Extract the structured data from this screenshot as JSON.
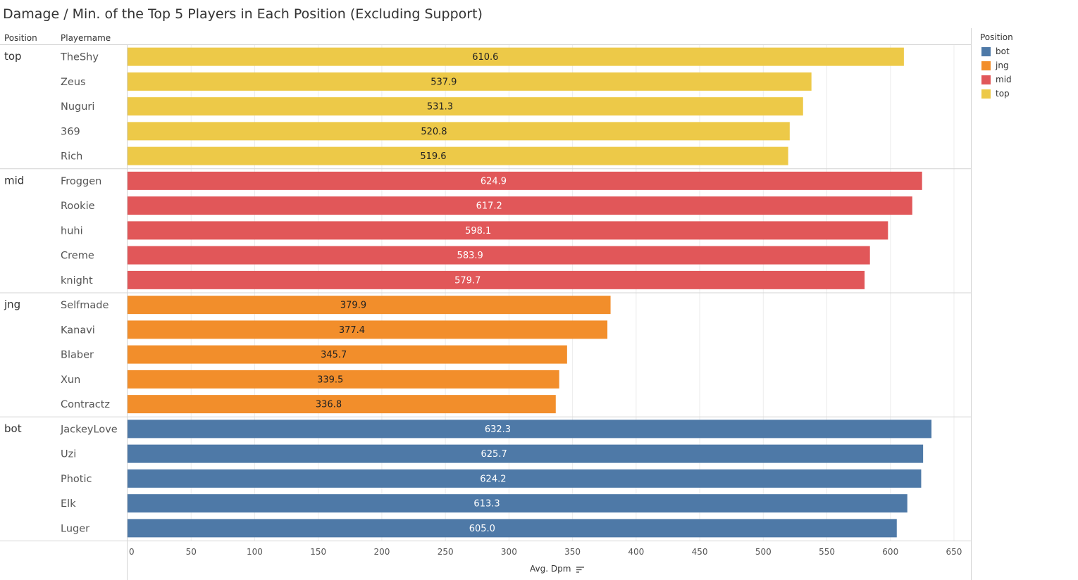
{
  "chart_data": {
    "type": "bar",
    "orientation": "horizontal",
    "title": "Damage / Min. of the Top 5 Players in Each Position (Excluding Support)",
    "row_headers": [
      "Position",
      "Playername"
    ],
    "xlabel": "Avg. Dpm",
    "xlim": [
      0,
      650
    ],
    "xticks": [
      0,
      50,
      100,
      150,
      200,
      250,
      300,
      350,
      400,
      450,
      500,
      550,
      600,
      650
    ],
    "grid": true,
    "legend": {
      "title": "Position",
      "placement": "top-right",
      "items": [
        {
          "label": "bot",
          "color": "#4e79a7"
        },
        {
          "label": "jng",
          "color": "#f28e2b"
        },
        {
          "label": "mid",
          "color": "#e15759"
        },
        {
          "label": "top",
          "color": "#edc948"
        }
      ]
    },
    "groups": [
      {
        "position": "top",
        "players": [
          {
            "name": "TheShy",
            "value": 610.6,
            "label": "610.6"
          },
          {
            "name": "Zeus",
            "value": 537.9,
            "label": "537.9"
          },
          {
            "name": "Nuguri",
            "value": 531.3,
            "label": "531.3"
          },
          {
            "name": "369",
            "value": 520.8,
            "label": "520.8"
          },
          {
            "name": "Rich",
            "value": 519.6,
            "label": "519.6"
          }
        ]
      },
      {
        "position": "mid",
        "players": [
          {
            "name": "Froggen",
            "value": 624.9,
            "label": "624.9"
          },
          {
            "name": "Rookie",
            "value": 617.2,
            "label": "617.2"
          },
          {
            "name": "huhi",
            "value": 598.1,
            "label": "598.1"
          },
          {
            "name": "Creme",
            "value": 583.9,
            "label": "583.9"
          },
          {
            "name": "knight",
            "value": 579.7,
            "label": "579.7"
          }
        ]
      },
      {
        "position": "jng",
        "players": [
          {
            "name": "Selfmade",
            "value": 379.9,
            "label": "379.9"
          },
          {
            "name": "Kanavi",
            "value": 377.4,
            "label": "377.4"
          },
          {
            "name": "Blaber",
            "value": 345.7,
            "label": "345.7"
          },
          {
            "name": "Xun",
            "value": 339.5,
            "label": "339.5"
          },
          {
            "name": "Contractz",
            "value": 336.8,
            "label": "336.8"
          }
        ]
      },
      {
        "position": "bot",
        "players": [
          {
            "name": "JackeyLove",
            "value": 632.3,
            "label": "632.3"
          },
          {
            "name": "Uzi",
            "value": 625.7,
            "label": "625.7"
          },
          {
            "name": "Photic",
            "value": 624.2,
            "label": "624.2"
          },
          {
            "name": "Elk",
            "value": 613.3,
            "label": "613.3"
          },
          {
            "name": "Luger",
            "value": 605.0,
            "label": "605.0"
          }
        ]
      }
    ]
  }
}
